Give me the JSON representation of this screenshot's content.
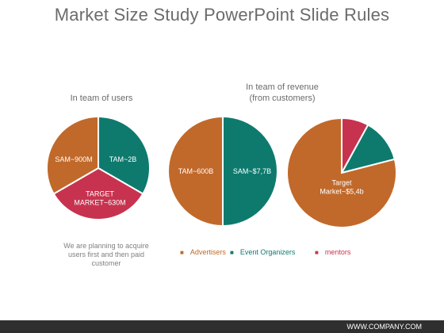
{
  "title": "Market Size Study PowerPoint Slide Rules",
  "group_users": "In team of users",
  "group_revenue_line1": "In team of revenue",
  "group_revenue_line2": "(from customers)",
  "note_lines": [
    "We are planning to acquire",
    "users first and then paid",
    "customer"
  ],
  "legend": [
    {
      "label": "Advertisers",
      "color": "#c1692a"
    },
    {
      "label": "Event Organizers",
      "color": "#0e7a6e"
    },
    {
      "label": "mentors",
      "color": "#c7334f"
    }
  ],
  "footer_url": "WWW.COMPANY.COM",
  "colors": {
    "orange": "#c1692a",
    "teal": "#0e7a6e",
    "red": "#c7334f"
  },
  "chart_data": [
    {
      "type": "pie",
      "group": "In team of users",
      "slices": [
        {
          "label": "TAM~2B",
          "value": 3,
          "color": "#0e7a6e"
        },
        {
          "label": "TARGET MARKET~630M",
          "value": 3,
          "color": "#c7334f"
        },
        {
          "label": "SAM~900M",
          "value": 3,
          "color": "#c1692a"
        }
      ]
    },
    {
      "type": "pie",
      "group": "In team of revenue (from customers)",
      "slices": [
        {
          "label": "SAM~$7,7B",
          "value": 50,
          "color": "#0e7a6e"
        },
        {
          "label": "TAM~600B",
          "value": 50,
          "color": "#c1692a"
        }
      ]
    },
    {
      "type": "pie",
      "group": "In team of revenue (from customers)",
      "slices": [
        {
          "label": "",
          "value": 8,
          "color": "#c7334f"
        },
        {
          "label": "",
          "value": 13,
          "color": "#0e7a6e"
        },
        {
          "label": "Target Market~$5,4b",
          "value": 79,
          "color": "#c1692a"
        }
      ]
    }
  ]
}
